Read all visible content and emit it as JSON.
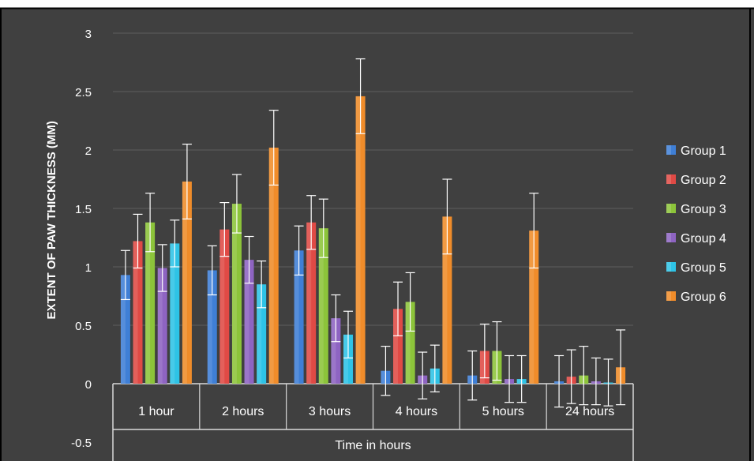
{
  "chart_data": {
    "type": "bar",
    "title": "",
    "xlabel": "Time in hours",
    "ylabel": "EXTENT OF PAW THICKNESS (MM)",
    "ylim": [
      -0.5,
      3
    ],
    "yticks": [
      "3",
      "2.5",
      "2",
      "1.5",
      "1",
      "0.5",
      "0",
      "-0.5"
    ],
    "ytick_values": [
      3,
      2.5,
      2,
      1.5,
      1,
      0.5,
      0,
      -0.5
    ],
    "grid": true,
    "legend_position": "right",
    "background": "#404040",
    "categories": [
      "1 hour",
      "2 hours",
      "3 hours",
      "4 hours",
      "5 hours",
      "24 hours"
    ],
    "series": [
      {
        "name": "Group 1",
        "color": "#3f7fd6",
        "values": [
          0.93,
          0.97,
          1.14,
          0.11,
          0.07,
          0.02
        ],
        "errors": [
          0.21,
          0.21,
          0.21,
          0.21,
          0.21,
          0.22
        ]
      },
      {
        "name": "Group 2",
        "color": "#e04a45",
        "values": [
          1.22,
          1.32,
          1.38,
          0.64,
          0.28,
          0.06
        ],
        "errors": [
          0.23,
          0.23,
          0.23,
          0.23,
          0.23,
          0.23
        ]
      },
      {
        "name": "Group 3",
        "color": "#8cc43a",
        "values": [
          1.38,
          1.54,
          1.33,
          0.7,
          0.28,
          0.07
        ],
        "errors": [
          0.25,
          0.25,
          0.25,
          0.25,
          0.25,
          0.25
        ]
      },
      {
        "name": "Group 4",
        "color": "#8e64c2",
        "values": [
          0.99,
          1.06,
          0.56,
          0.07,
          0.04,
          0.02
        ],
        "errors": [
          0.2,
          0.2,
          0.2,
          0.2,
          0.2,
          0.2
        ]
      },
      {
        "name": "Group 5",
        "color": "#2ec3e6",
        "values": [
          1.2,
          0.85,
          0.42,
          0.13,
          0.04,
          0.01
        ],
        "errors": [
          0.2,
          0.2,
          0.2,
          0.2,
          0.2,
          0.2
        ]
      },
      {
        "name": "Group 6",
        "color": "#f08c2a",
        "values": [
          1.73,
          2.02,
          2.46,
          1.43,
          1.31,
          0.14
        ],
        "errors": [
          0.32,
          0.32,
          0.32,
          0.32,
          0.32,
          0.32
        ]
      }
    ]
  }
}
